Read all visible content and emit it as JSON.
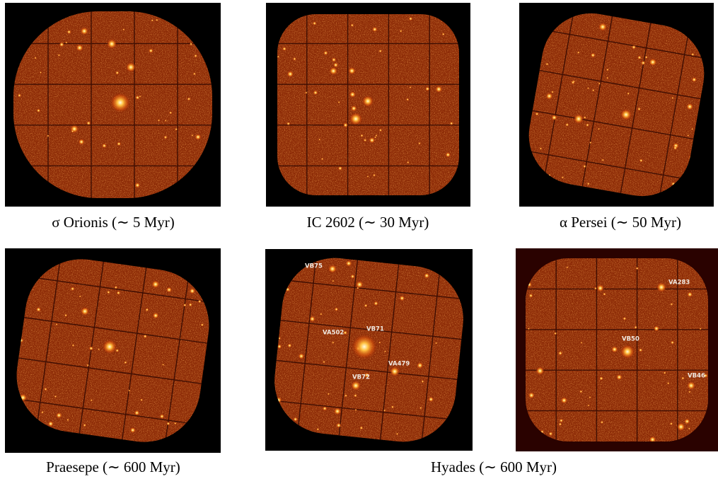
{
  "panels": [
    {
      "caption": "σ Orionis (∼ 5 Myr)"
    },
    {
      "caption": "IC 2602 (∼ 30 Myr)"
    },
    {
      "caption": "α Persei (∼ 50 Myr)"
    },
    {
      "caption": "Praesepe (∼ 600 Myr)"
    },
    {
      "labels": [
        "VB75",
        "VA502",
        "VB71",
        "VA479",
        "VB72"
      ]
    },
    {
      "labels": [
        "VA283",
        "VB50",
        "VB46"
      ]
    }
  ],
  "shared_caption": "Hyades (∼ 600 Myr)"
}
